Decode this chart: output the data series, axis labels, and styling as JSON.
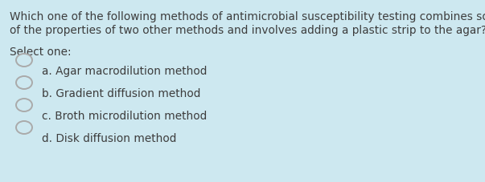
{
  "background_color": "#cde8f0",
  "question_lines": [
    "Which one of the following methods of antimicrobial susceptibility testing combines some",
    "of the properties of two other methods and involves adding a plastic strip to the agar?"
  ],
  "select_label": "Select one:",
  "options": [
    "a. Agar macrodilution method",
    "b. Gradient diffusion method",
    "c. Broth microdilution method",
    "d. Disk diffusion method"
  ],
  "text_color": "#3d3d3d",
  "circle_edge_color": "#aaaaaa",
  "circle_face_color": "#cde8f0",
  "question_fontsize": 9.8,
  "select_fontsize": 9.8,
  "option_fontsize": 9.8,
  "fig_width": 6.03,
  "fig_height": 2.27,
  "dpi": 100
}
